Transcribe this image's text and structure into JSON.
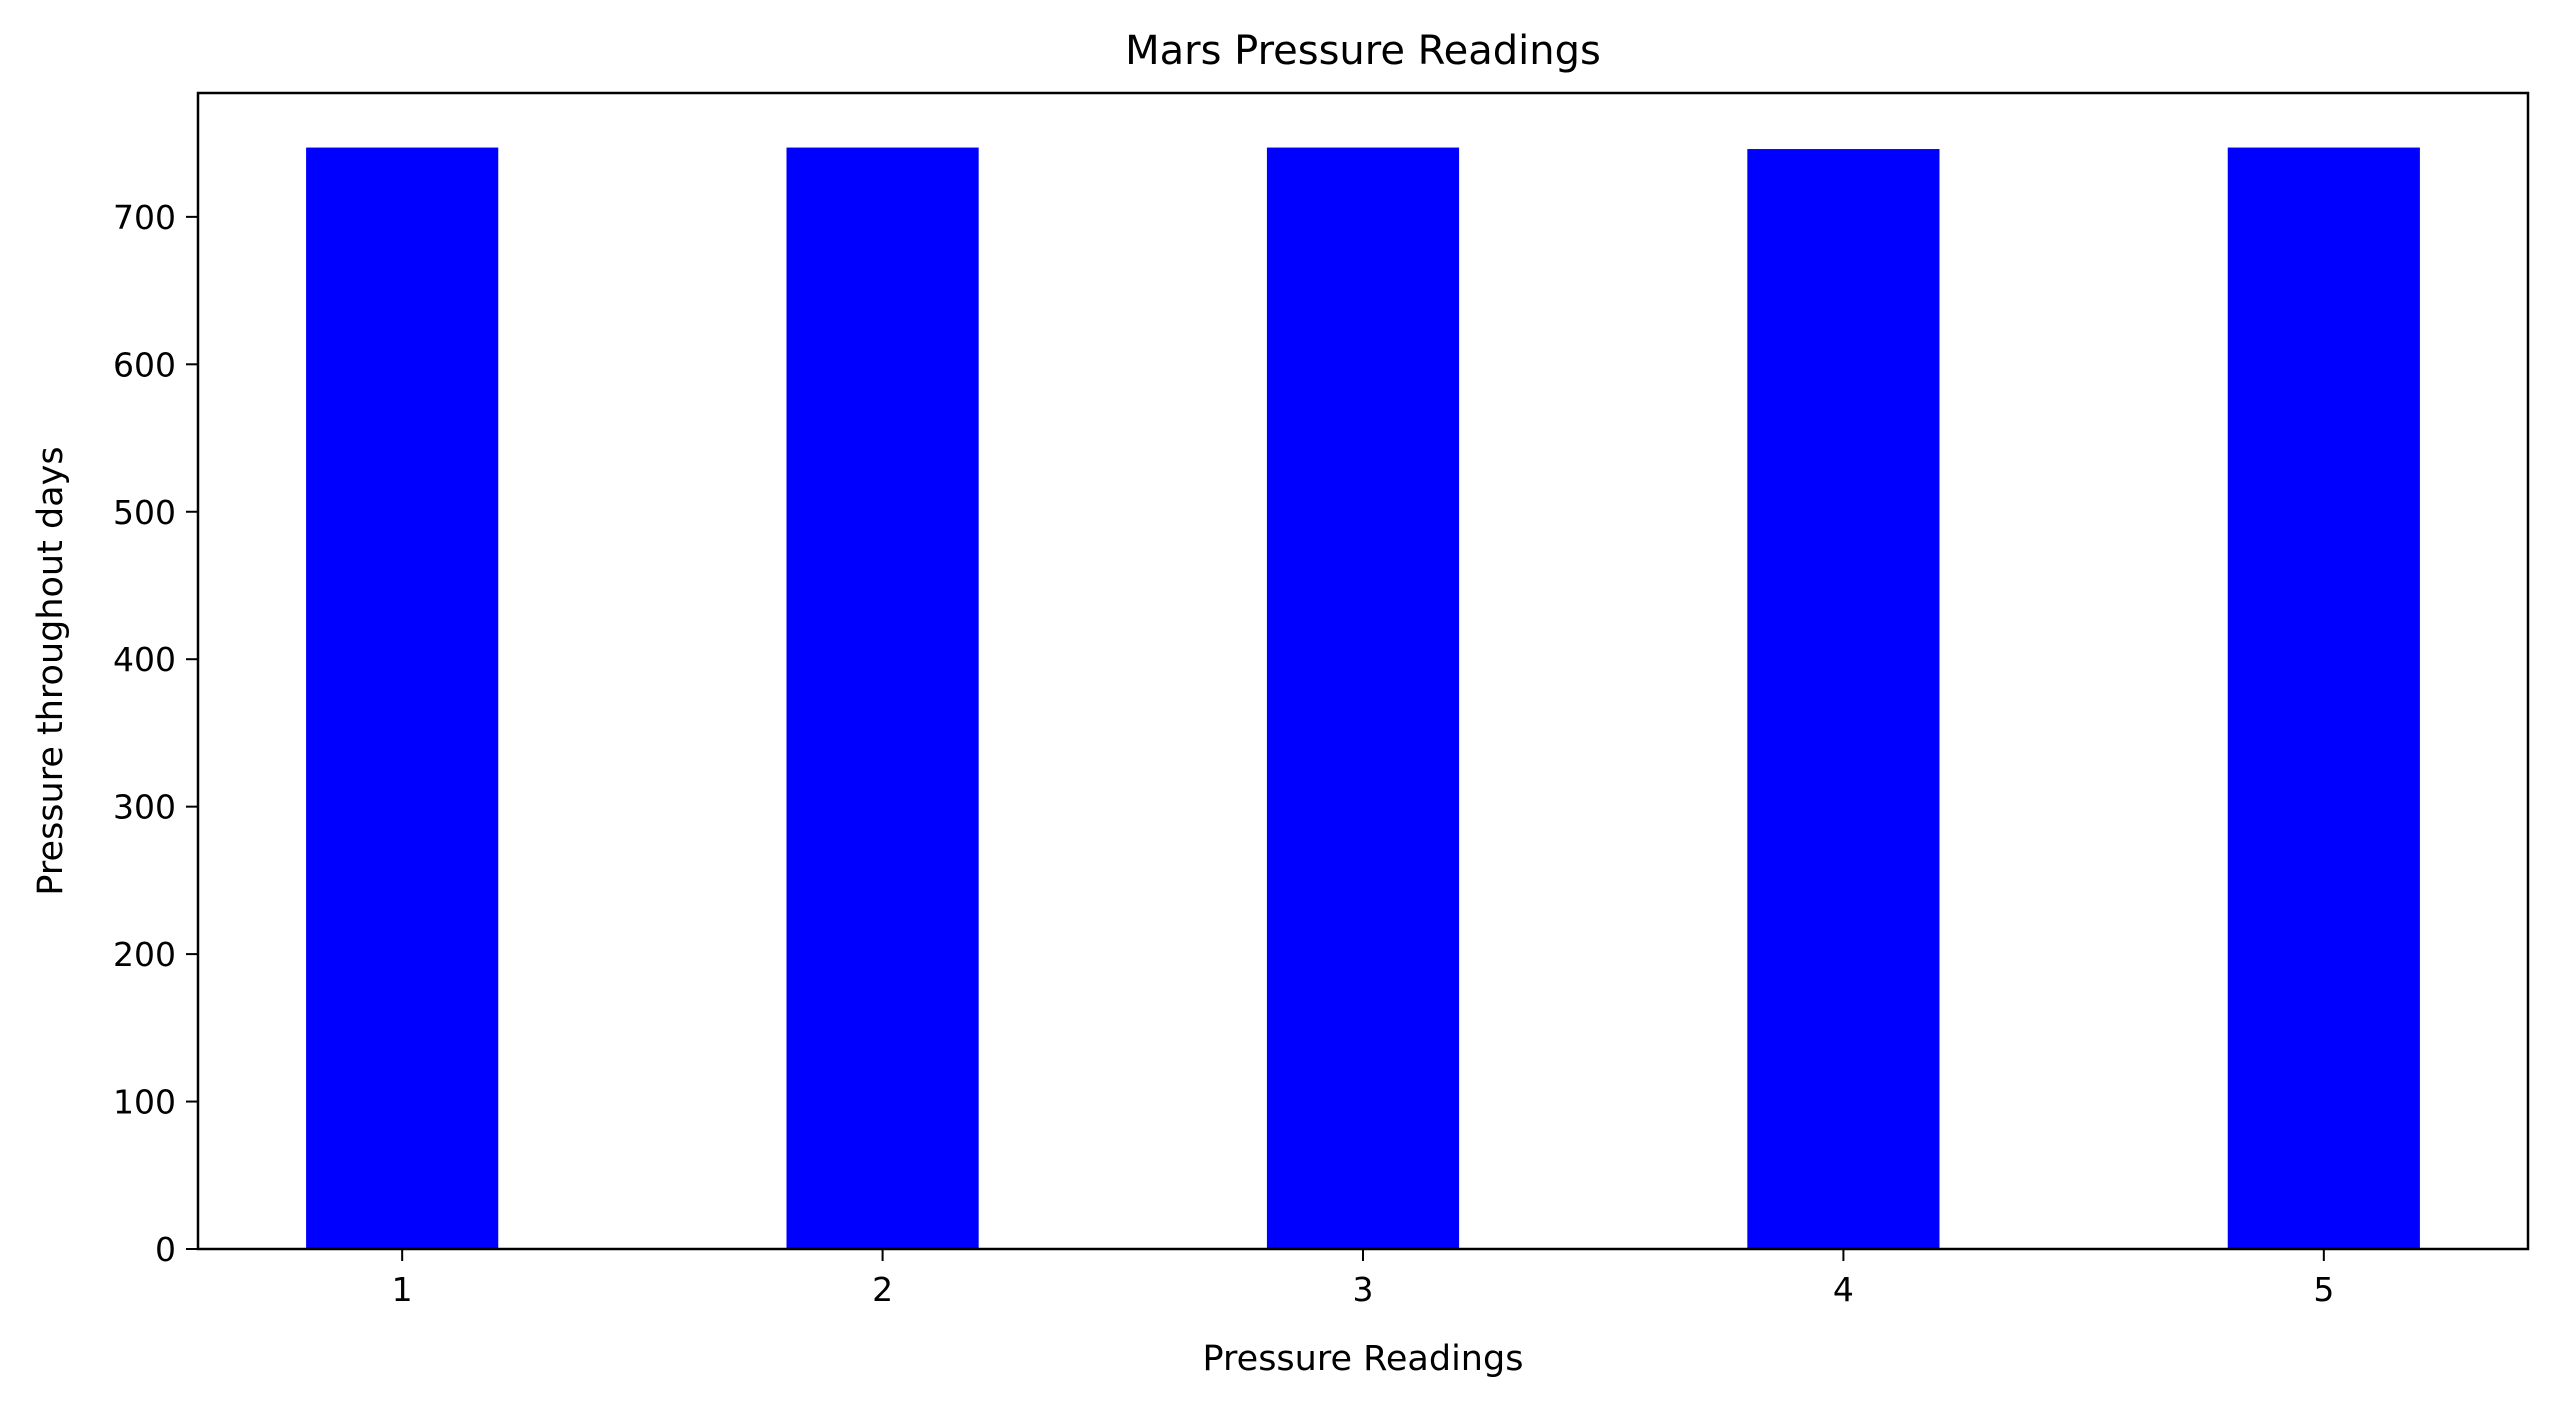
{
  "chart_data": {
    "type": "bar",
    "title": "Mars Pressure Readings",
    "xlabel": "Pressure Readings",
    "ylabel": "Pressure throughout days",
    "categories": [
      "1",
      "2",
      "3",
      "4",
      "5"
    ],
    "x": [
      1,
      2,
      3,
      4,
      5
    ],
    "values": [
      747,
      747,
      747,
      746,
      747
    ],
    "xlim": [
      0.575,
      5.425
    ],
    "ylim": [
      0,
      784
    ],
    "yticks": [
      0,
      100,
      200,
      300,
      400,
      500,
      600,
      700
    ],
    "bar_width": 0.4,
    "bar_color": "#0000ff",
    "grid": false,
    "legend": "none"
  }
}
